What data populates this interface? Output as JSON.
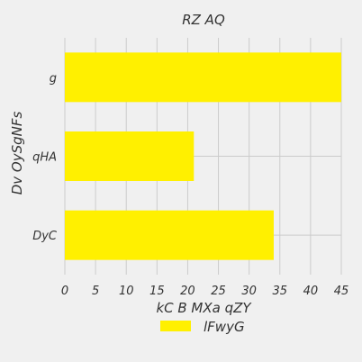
{
  "chart_data": {
    "type": "bar",
    "orientation": "horizontal",
    "title": "RZ AQ",
    "xlabel": "kC B MXa qZY",
    "ylabel": "Dv OySgNFs",
    "categories": [
      "DyC",
      "qHA",
      "g"
    ],
    "series": [
      {
        "name": "lFwyG",
        "values": [
          34,
          21,
          45
        ],
        "color": "#fff000"
      }
    ],
    "xlim": [
      0,
      45
    ],
    "xticks": [
      0,
      5,
      10,
      15,
      20,
      25,
      30,
      35,
      40,
      45
    ],
    "grid": true,
    "legend_position": "bottom-center"
  },
  "colors": {
    "background": "#f0f0f0",
    "grid": "#cbcbcb",
    "bar": "#fff000",
    "text": "#333333"
  }
}
